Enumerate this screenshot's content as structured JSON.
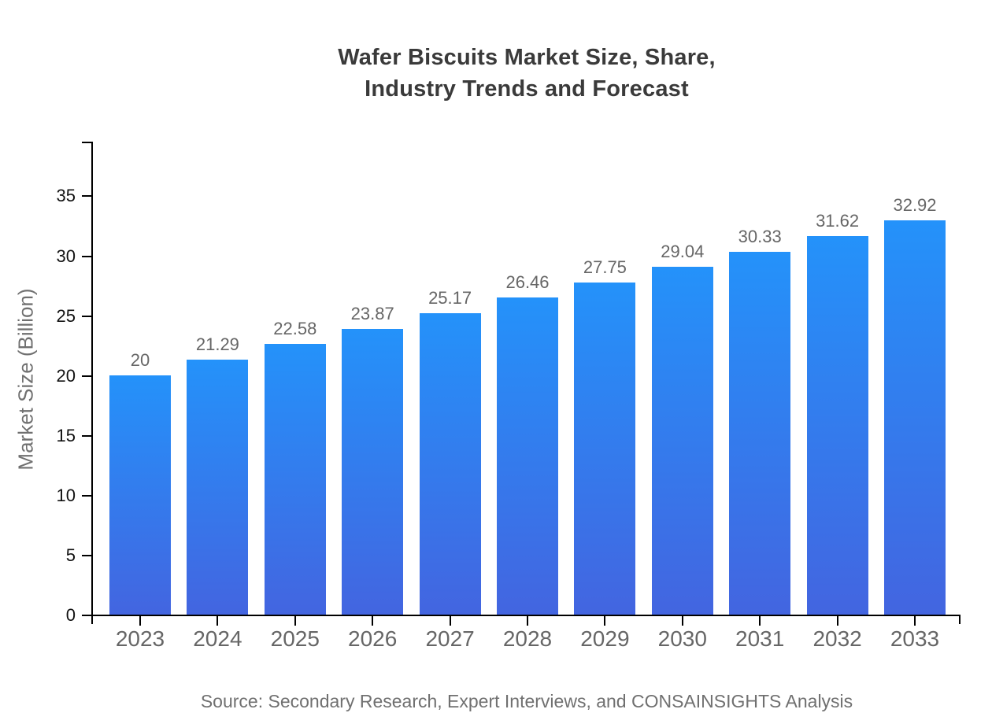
{
  "title": {
    "line1": "Wafer Biscuits Market Size, Share,",
    "line2": "Industry Trends and Forecast"
  },
  "source_text": "Source: Secondary Research, Expert Interviews, and CONSAINSIGHTS Analysis",
  "chart_data": {
    "type": "bar",
    "title": "Wafer Biscuits Market Size, Share, Industry Trends and Forecast",
    "categories": [
      "2023",
      "2024",
      "2025",
      "2026",
      "2027",
      "2028",
      "2029",
      "2030",
      "2031",
      "2032",
      "2033"
    ],
    "values": [
      20,
      21.29,
      22.58,
      23.87,
      25.17,
      26.46,
      27.75,
      29.04,
      30.33,
      31.62,
      32.92
    ],
    "value_labels": [
      "20",
      "21.29",
      "22.58",
      "23.87",
      "25.17",
      "26.46",
      "27.75",
      "29.04",
      "30.33",
      "31.62",
      "32.92"
    ],
    "xlabel": "",
    "ylabel": "Market Size (Billion)",
    "ylim": [
      0,
      39.5
    ],
    "yticks": [
      0,
      5,
      10,
      15,
      20,
      25,
      30,
      35
    ],
    "grid": false,
    "legend": "none",
    "colors": {
      "bar_gradient_top": "#2492fa",
      "bar_gradient_bottom": "#4365e0",
      "axis": "#000000",
      "ytick_label": "#111111",
      "xtick_label": "#666666",
      "value_label": "#666666",
      "axis_title": "#707070",
      "chart_title": "#3a3a3a",
      "source": "#707070"
    }
  }
}
